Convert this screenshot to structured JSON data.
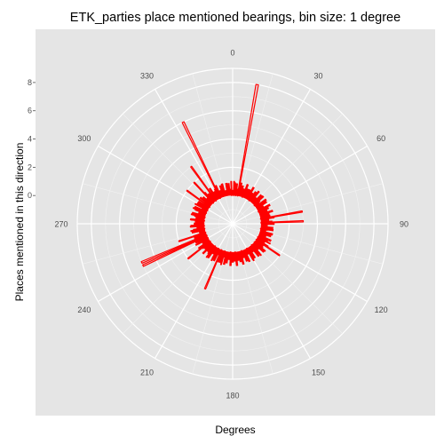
{
  "chart_data": {
    "type": "polar-bar",
    "title": "ETK_parties place mentioned bearings, bin size: 1 degree",
    "xlabel": "Degrees",
    "ylabel": "Places mentioned in this direction",
    "bin_size_degrees": 1,
    "angle_ticks": [
      0,
      30,
      60,
      90,
      120,
      150,
      180,
      210,
      240,
      270,
      300,
      330
    ],
    "radial_ticks": [
      0,
      2,
      4,
      6,
      8
    ],
    "radial_range": [
      -2,
      9
    ],
    "grid": true,
    "bars": [
      {
        "angle": 10,
        "value": 8.0
      },
      {
        "angle": 334,
        "value": 6.0
      },
      {
        "angle": 324,
        "value": 3.0
      },
      {
        "angle": 317,
        "value": 2.0
      },
      {
        "angle": 306,
        "value": 2.0
      },
      {
        "angle": 358,
        "value": 1.0
      },
      {
        "angle": 2,
        "value": 1.0
      },
      {
        "angle": 6,
        "value": 0.5
      },
      {
        "angle": 20,
        "value": 0.5
      },
      {
        "angle": 35,
        "value": 0.5
      },
      {
        "angle": 50,
        "value": 0.5
      },
      {
        "angle": 65,
        "value": 0.5
      },
      {
        "angle": 80,
        "value": 3.0
      },
      {
        "angle": 88,
        "value": 3.0
      },
      {
        "angle": 100,
        "value": 0.5
      },
      {
        "angle": 118,
        "value": 1.0
      },
      {
        "angle": 124,
        "value": 2.0
      },
      {
        "angle": 130,
        "value": 1.0
      },
      {
        "angle": 138,
        "value": 1.0
      },
      {
        "angle": 150,
        "value": 1.0
      },
      {
        "angle": 162,
        "value": 0.5
      },
      {
        "angle": 175,
        "value": 0.5
      },
      {
        "angle": 184,
        "value": 0.5
      },
      {
        "angle": 196,
        "value": 1.0
      },
      {
        "angle": 203,
        "value": 3.0
      },
      {
        "angle": 210,
        "value": 1.0
      },
      {
        "angle": 218,
        "value": 1.0
      },
      {
        "angle": 232,
        "value": 2.0
      },
      {
        "angle": 240,
        "value": 1.0
      },
      {
        "angle": 245,
        "value": 5.0
      },
      {
        "angle": 247,
        "value": 5.0
      },
      {
        "angle": 252,
        "value": 2.0
      },
      {
        "angle": 260,
        "value": 1.0
      },
      {
        "angle": 266,
        "value": 1.0
      },
      {
        "angle": 276,
        "value": 1.0
      },
      {
        "angle": 283,
        "value": 1.0
      },
      {
        "angle": 292,
        "value": 1.0
      },
      {
        "angle": 298,
        "value": 1.0
      }
    ]
  }
}
